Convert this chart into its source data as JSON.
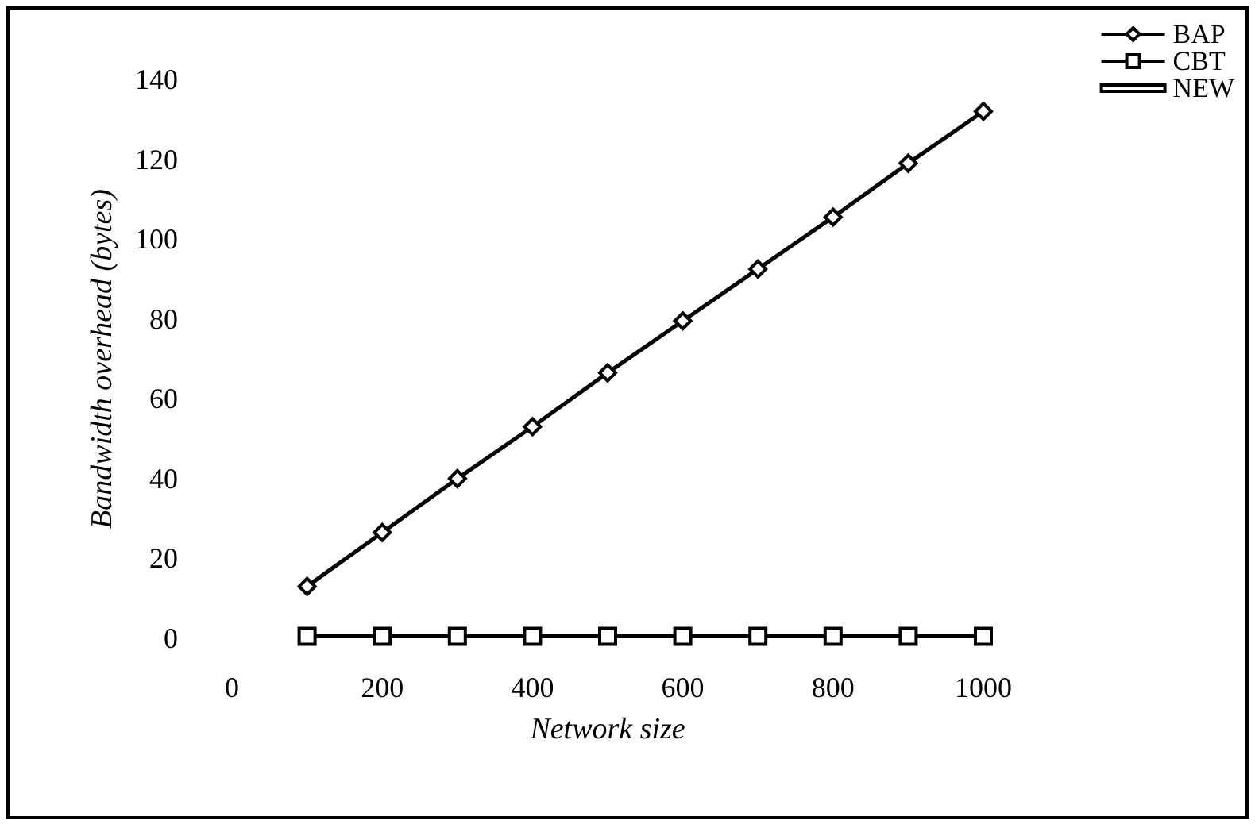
{
  "chart_data": {
    "type": "line",
    "xlabel": "Network size",
    "ylabel": "Bandwidth overhead (bytes)",
    "x": [
      100,
      200,
      300,
      400,
      500,
      600,
      700,
      800,
      900,
      1000
    ],
    "series": [
      {
        "name": "BAP",
        "color": "#000000",
        "marker": "diamond",
        "values": [
          13,
          26.5,
          40,
          53,
          66.5,
          79.5,
          92.5,
          105.5,
          119,
          132
        ]
      },
      {
        "name": "CBT",
        "color": "#000000",
        "marker": "square",
        "values": [
          0.5,
          0.5,
          0.5,
          0.5,
          0.5,
          0.5,
          0.5,
          0.5,
          0.5,
          0.5
        ]
      },
      {
        "name": "NEW",
        "color": "#000000",
        "marker": "none",
        "values": [
          null,
          null,
          null,
          null,
          null,
          null,
          null,
          null,
          null,
          null
        ]
      }
    ],
    "xlim": [
      0,
      1000
    ],
    "xticks": [
      0,
      200,
      400,
      600,
      800,
      1000
    ],
    "ylim": [
      0,
      140
    ],
    "yticks": [
      0,
      20,
      40,
      60,
      80,
      100,
      120,
      140
    ],
    "grid": false,
    "legend": "top right",
    "line_style": "solid"
  }
}
